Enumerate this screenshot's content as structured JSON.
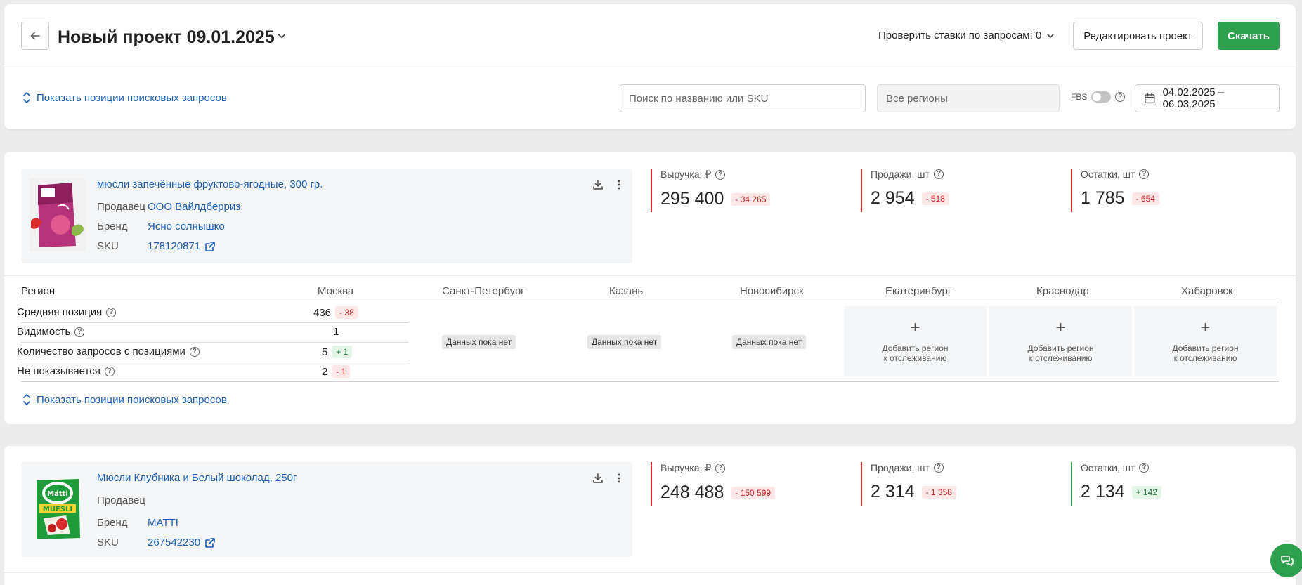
{
  "header": {
    "title": "Новый проект 09.01.2025",
    "check_bids": "Проверить ставки по запросам: 0",
    "edit_button": "Редактировать проект",
    "download_button": "Скачать",
    "show_positions": "Показать позиции поисковых запросов",
    "search_placeholder": "Поиск по названию или SKU",
    "regions_placeholder": "Все регионы",
    "fbs_label": "FBS",
    "fbs_enabled": false,
    "date_range": "04.02.2025 – 06.03.2025"
  },
  "products": [
    {
      "name": "мюсли запечённые фруктово-ягодные, 300 гр.",
      "seller_label": "Продавец",
      "seller": "ООО Вайлдберриз",
      "brand_label": "Бренд",
      "brand": "Ясно солнышко",
      "sku_label": "SKU",
      "sku": "178120871",
      "metrics": [
        {
          "label": "Выручка, ₽",
          "value": "295 400",
          "delta": "- 34 265",
          "trend": "neg"
        },
        {
          "label": "Продажи, шт",
          "value": "2 954",
          "delta": "- 518",
          "trend": "neg"
        },
        {
          "label": "Остатки, шт",
          "value": "1 785",
          "delta": "- 654",
          "trend": "neg"
        }
      ],
      "regions_table": {
        "region_label": "Регион",
        "regions": [
          "Москва",
          "Санкт-Петербург",
          "Казань",
          "Новосибирск",
          "Екатеринбург",
          "Краснодар",
          "Хабаровск"
        ],
        "rows": [
          {
            "label": "Средняя позиция",
            "value": "436",
            "delta": "- 38",
            "trend": "neg"
          },
          {
            "label": "Видимость",
            "value": "1",
            "delta": "",
            "trend": ""
          },
          {
            "label": "Количество запросов с позициями",
            "value": "5",
            "delta": "+ 1",
            "trend": "pos"
          },
          {
            "label": "Не показывается",
            "value": "2",
            "delta": "- 1",
            "trend": "neg"
          }
        ],
        "no_data": "Данных пока нет",
        "add_region_line1": "Добавить регион",
        "add_region_line2": "к отслеживанию"
      },
      "show_positions": "Показать позиции поисковых запросов"
    },
    {
      "name": "Мюсли Клубника и Белый шоколад, 250г",
      "seller_label": "Продавец",
      "seller": "",
      "brand_label": "Бренд",
      "brand": "MATTI",
      "sku_label": "SKU",
      "sku": "267542230",
      "metrics": [
        {
          "label": "Выручка, ₽",
          "value": "248 488",
          "delta": "- 150 599",
          "trend": "neg"
        },
        {
          "label": "Продажи, шт",
          "value": "2 314",
          "delta": "- 1 358",
          "trend": "neg"
        },
        {
          "label": "Остатки, шт",
          "value": "2 134",
          "delta": "+ 142",
          "trend": "pos"
        }
      ]
    }
  ],
  "colors": {
    "accent_green": "#2e9e4f",
    "link_blue": "#1a5fb4",
    "negative_red": "#d93030"
  }
}
